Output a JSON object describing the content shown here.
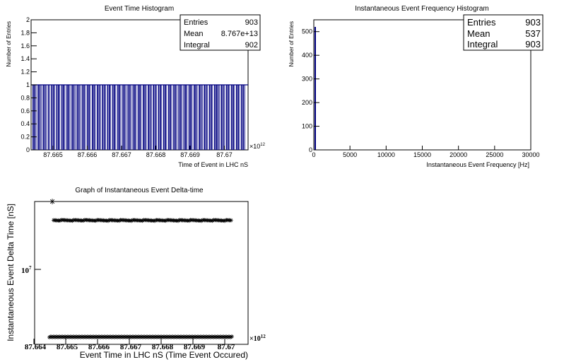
{
  "charts": [
    {
      "type": "bar",
      "title": "Event Time Histogram",
      "xlabel": "Time of Event in LHC nS",
      "ylabel": "Number of Entries",
      "ylim": [
        0,
        2
      ],
      "y_ticks": [
        "0",
        "0.2",
        "0.4",
        "0.6",
        "0.8",
        "1",
        "1.2",
        "1.4",
        "1.6",
        "1.8",
        "2"
      ],
      "x_ticks": [
        "87.665",
        "87.666",
        "87.667",
        "87.668",
        "87.669",
        "87.67"
      ],
      "x_multiplier": "×10",
      "x_multiplier_exp": "12",
      "stats": [
        {
          "label": "Entries",
          "value": "903"
        },
        {
          "label": "Mean",
          "value": "8.767e+13"
        },
        {
          "label": "Integral",
          "value": "902"
        }
      ],
      "bin_value": 1,
      "bar_color": "#000080"
    },
    {
      "type": "bar",
      "title": "Instantaneous Event Frequency Histogram",
      "xlabel": "Instantaneous Event Frequency [Hz]",
      "ylabel": "Number of Entries",
      "xlim": [
        0,
        30000
      ],
      "ylim": [
        0,
        550
      ],
      "y_ticks": [
        "0",
        "100",
        "200",
        "300",
        "400",
        "500"
      ],
      "x_ticks": [
        "0",
        "5000",
        "10000",
        "15000",
        "20000",
        "25000",
        "30000"
      ],
      "stats": [
        {
          "label": "Entries",
          "value": "903"
        },
        {
          "label": "Mean",
          "value": "537"
        },
        {
          "label": "Integral",
          "value": "903"
        }
      ],
      "bin_value": 520,
      "bar_color": "#000080"
    },
    {
      "type": "scatter",
      "title": "Graph of Instantaneous Event Delta-time",
      "xlabel": "Event Time in LHC nS (Time Event Occured)",
      "ylabel": "Instantaneous Event Delta Time [nS]",
      "x_ticks": [
        "87.664",
        "87.665",
        "87.666",
        "87.667",
        "87.668",
        "87.669",
        "87.67"
      ],
      "x_multiplier": "×10",
      "x_multiplier_exp": "12",
      "y_tick_label": "10",
      "y_tick_exp": "7",
      "marker": "*",
      "marker_color": "#000000"
    }
  ]
}
